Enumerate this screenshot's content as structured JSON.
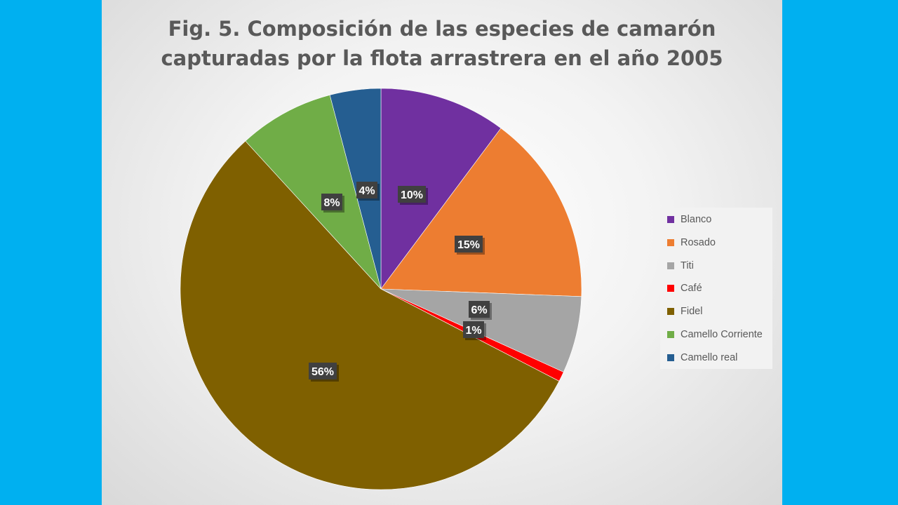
{
  "chart_data": {
    "type": "pie",
    "title_lines": [
      "Fig. 5. Composición de las especies de camarón",
      "capturadas por la flota arrastrera en el año 2005"
    ],
    "slices": [
      {
        "name": "Blanco",
        "value": 10.2,
        "label": "10%",
        "color": "#7030a0"
      },
      {
        "name": "Rosado",
        "value": 15.4,
        "label": "15%",
        "color": "#ed7d31"
      },
      {
        "name": "Titi",
        "value": 6.2,
        "label": "6%",
        "color": "#a5a5a5"
      },
      {
        "name": "Café",
        "value": 0.8,
        "label": "1%",
        "color": "#ff0000"
      },
      {
        "name": "Fidel",
        "value": 55.6,
        "label": "56%",
        "color": "#7f6000"
      },
      {
        "name": "Camello Corriente",
        "value": 7.7,
        "label": "8%",
        "color": "#70ad47"
      },
      {
        "name": "Camello real",
        "value": 4.1,
        "label": "4%",
        "color": "#255e91"
      }
    ],
    "legend_position": "right"
  }
}
